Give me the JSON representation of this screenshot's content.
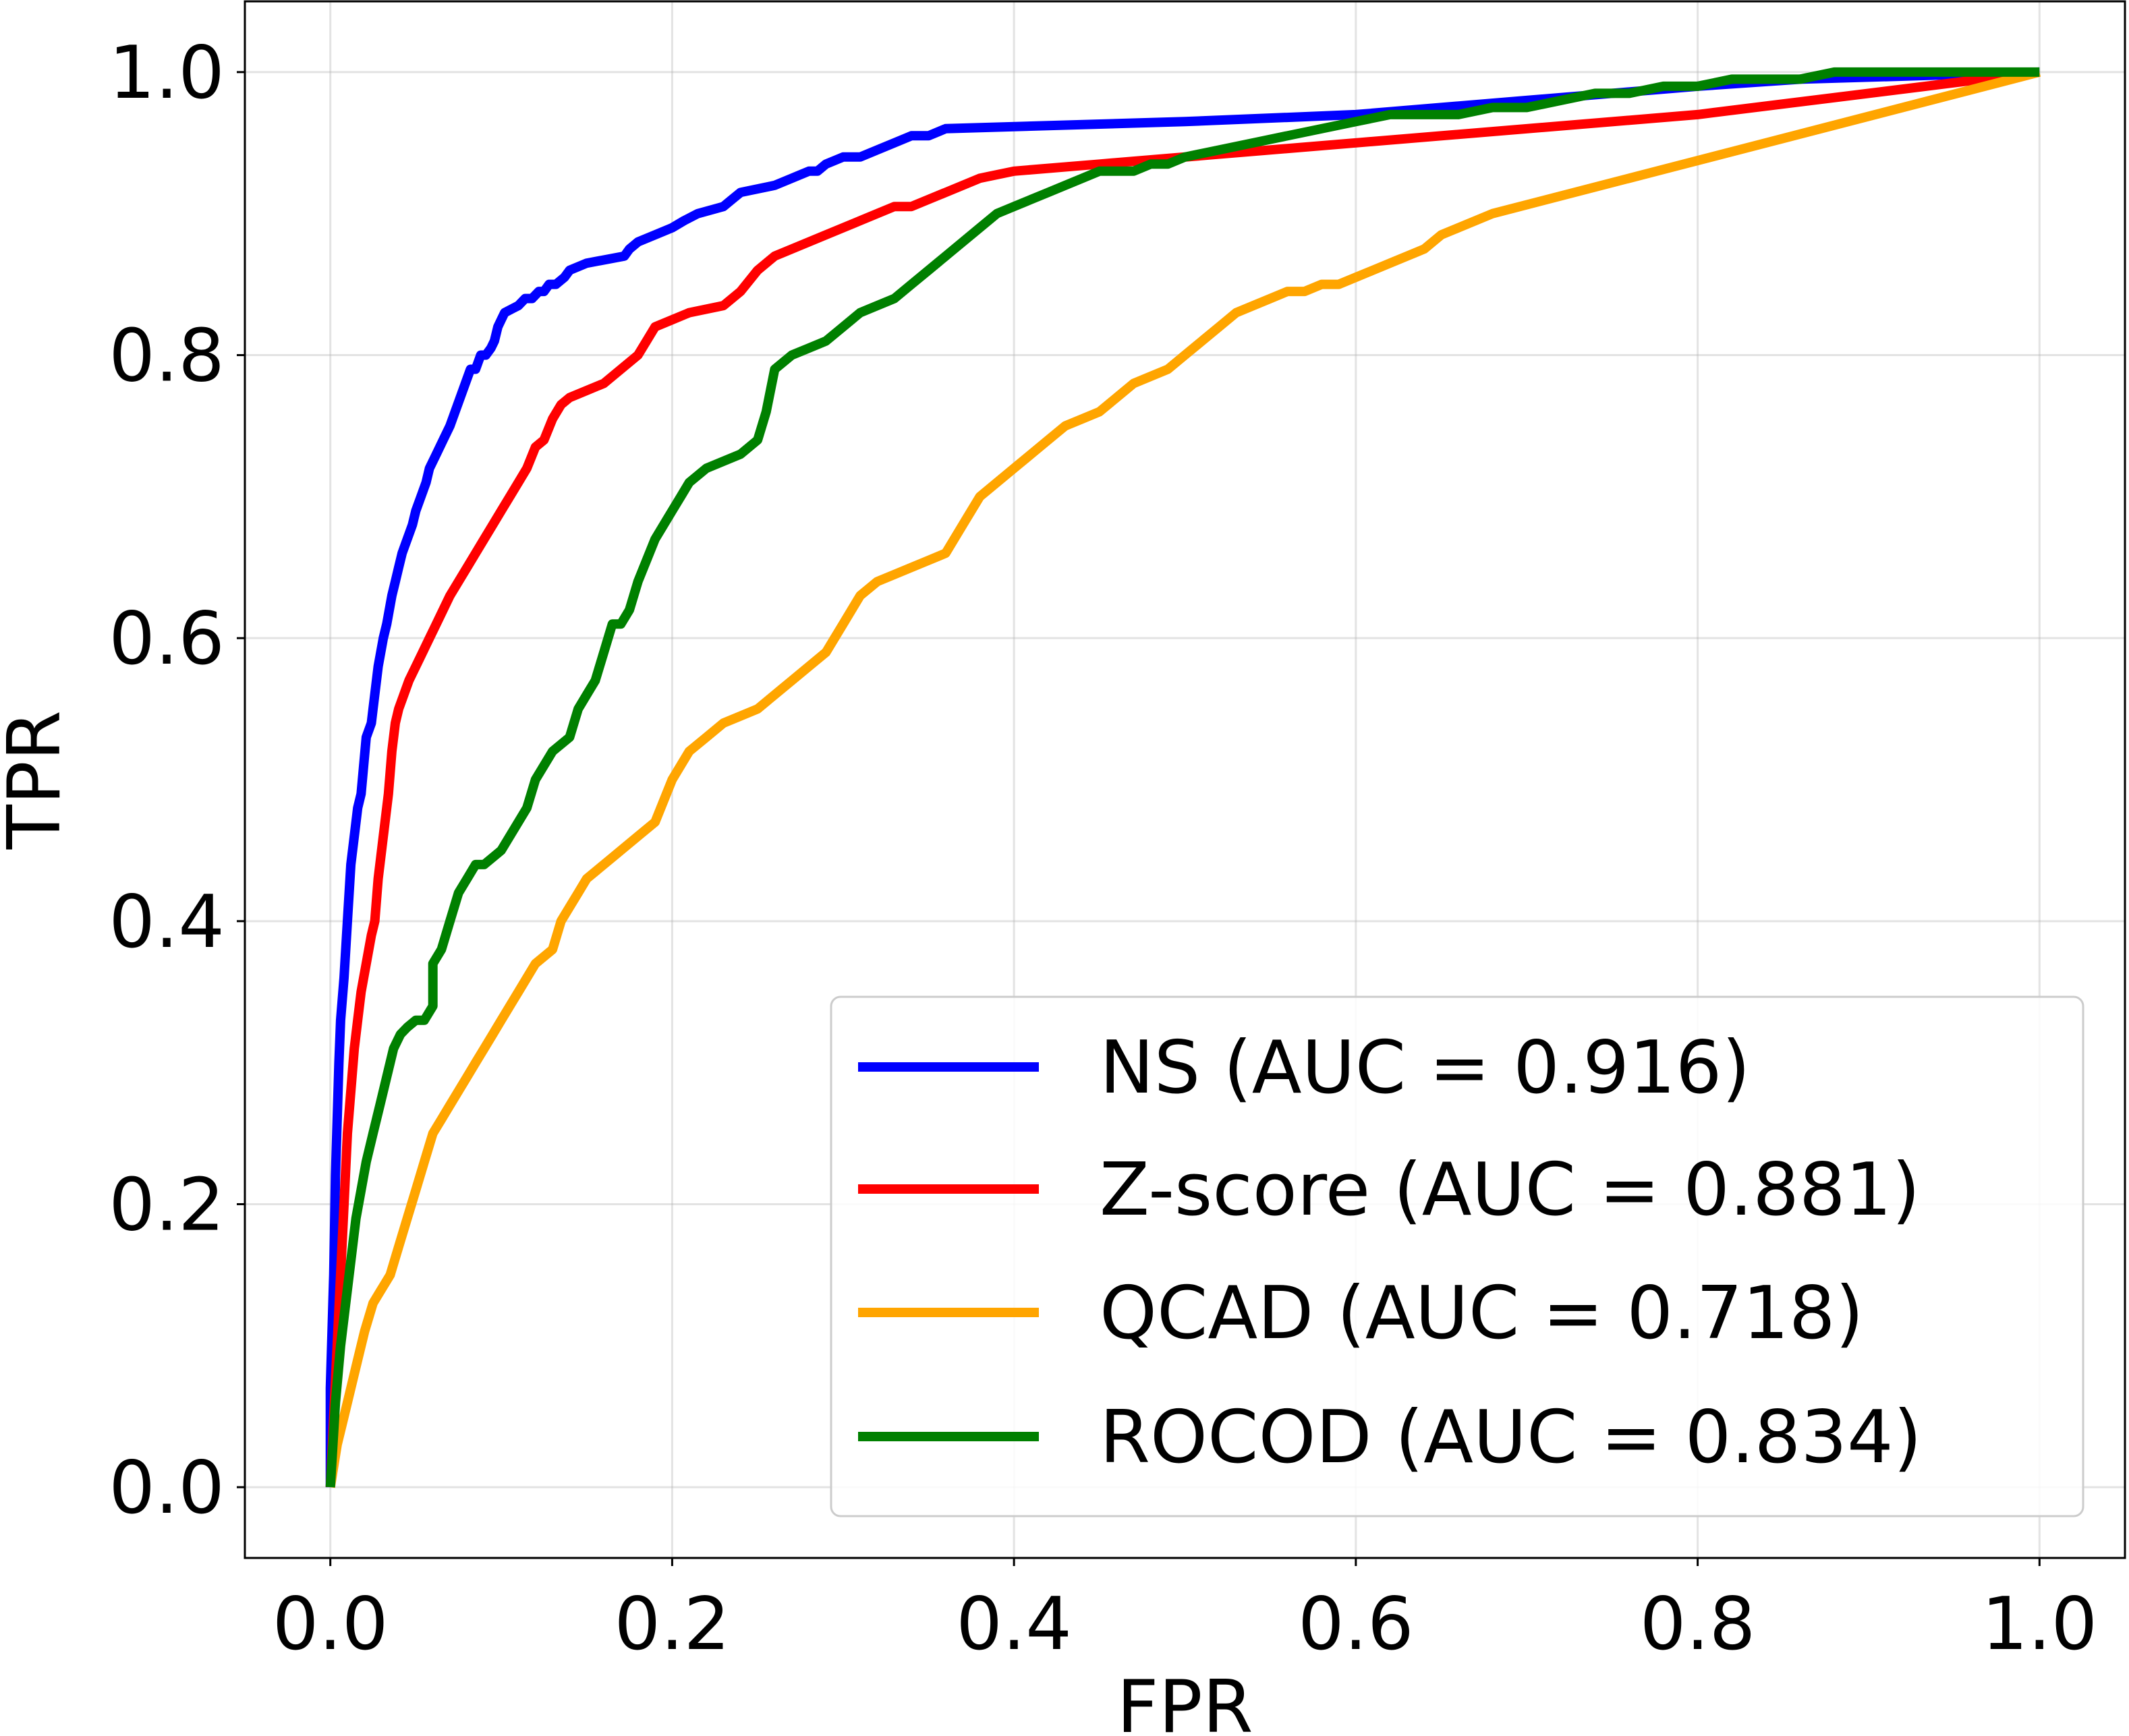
{
  "chart_data": {
    "type": "line",
    "title": "",
    "xlabel": "FPR",
    "ylabel": "TPR",
    "xlim": [
      -0.05,
      1.05
    ],
    "ylim": [
      -0.05,
      1.05
    ],
    "xticks": [
      "0.0",
      "0.2",
      "0.4",
      "0.6",
      "0.8",
      "1.0"
    ],
    "yticks": [
      "0.0",
      "0.2",
      "0.4",
      "0.6",
      "0.8",
      "1.0"
    ],
    "grid": true,
    "legend_position": "lower-right",
    "series": [
      {
        "name": "NS",
        "label": "NS (AUC = 0.916)",
        "auc": 0.916,
        "color": "#0000ff",
        "x": [
          0.0,
          0.0,
          0.002,
          0.003,
          0.005,
          0.006,
          0.008,
          0.01,
          0.012,
          0.014,
          0.016,
          0.018,
          0.021,
          0.024,
          0.025,
          0.028,
          0.031,
          0.033,
          0.036,
          0.038,
          0.04,
          0.042,
          0.045,
          0.048,
          0.05,
          0.053,
          0.056,
          0.058,
          0.06,
          0.062,
          0.066,
          0.07,
          0.073,
          0.076,
          0.079,
          0.082,
          0.085,
          0.088,
          0.091,
          0.094,
          0.096,
          0.098,
          0.1,
          0.102,
          0.11,
          0.114,
          0.118,
          0.122,
          0.125,
          0.128,
          0.132,
          0.137,
          0.14,
          0.15,
          0.172,
          0.175,
          0.18,
          0.19,
          0.2,
          0.207,
          0.215,
          0.23,
          0.235,
          0.24,
          0.26,
          0.27,
          0.28,
          0.285,
          0.29,
          0.3,
          0.31,
          0.32,
          0.33,
          0.34,
          0.35,
          0.36,
          0.5,
          0.6,
          0.7,
          0.8,
          0.86,
          1.0
        ],
        "y": [
          0.0,
          0.07,
          0.15,
          0.22,
          0.3,
          0.33,
          0.36,
          0.4,
          0.44,
          0.46,
          0.48,
          0.49,
          0.53,
          0.54,
          0.55,
          0.58,
          0.6,
          0.61,
          0.63,
          0.64,
          0.65,
          0.66,
          0.67,
          0.68,
          0.69,
          0.7,
          0.71,
          0.72,
          0.725,
          0.73,
          0.74,
          0.75,
          0.76,
          0.77,
          0.78,
          0.79,
          0.79,
          0.8,
          0.8,
          0.805,
          0.81,
          0.82,
          0.825,
          0.83,
          0.835,
          0.84,
          0.84,
          0.845,
          0.845,
          0.85,
          0.85,
          0.855,
          0.86,
          0.865,
          0.87,
          0.875,
          0.88,
          0.885,
          0.89,
          0.895,
          0.9,
          0.905,
          0.91,
          0.915,
          0.92,
          0.925,
          0.93,
          0.93,
          0.935,
          0.94,
          0.94,
          0.945,
          0.95,
          0.955,
          0.955,
          0.96,
          0.965,
          0.97,
          0.98,
          0.99,
          0.995,
          1.0
        ]
      },
      {
        "name": "Z-score",
        "label": "Z-score (AUC = 0.881)",
        "auc": 0.881,
        "color": "#ff0000",
        "x": [
          0.0,
          0.002,
          0.004,
          0.006,
          0.008,
          0.01,
          0.012,
          0.014,
          0.016,
          0.018,
          0.021,
          0.024,
          0.026,
          0.028,
          0.031,
          0.034,
          0.036,
          0.038,
          0.04,
          0.043,
          0.046,
          0.05,
          0.054,
          0.058,
          0.062,
          0.066,
          0.07,
          0.075,
          0.08,
          0.085,
          0.09,
          0.095,
          0.1,
          0.105,
          0.11,
          0.115,
          0.12,
          0.125,
          0.13,
          0.135,
          0.14,
          0.15,
          0.16,
          0.17,
          0.18,
          0.185,
          0.19,
          0.2,
          0.21,
          0.23,
          0.24,
          0.25,
          0.26,
          0.27,
          0.28,
          0.29,
          0.3,
          0.31,
          0.32,
          0.33,
          0.34,
          0.35,
          0.36,
          0.38,
          0.4,
          0.45,
          0.6,
          0.8,
          1.0
        ],
        "y": [
          0.0,
          0.05,
          0.1,
          0.15,
          0.2,
          0.25,
          0.28,
          0.31,
          0.33,
          0.35,
          0.37,
          0.39,
          0.4,
          0.43,
          0.46,
          0.49,
          0.52,
          0.54,
          0.55,
          0.56,
          0.57,
          0.58,
          0.59,
          0.6,
          0.61,
          0.62,
          0.63,
          0.64,
          0.65,
          0.66,
          0.67,
          0.68,
          0.69,
          0.7,
          0.71,
          0.72,
          0.735,
          0.74,
          0.755,
          0.765,
          0.77,
          0.775,
          0.78,
          0.79,
          0.8,
          0.81,
          0.82,
          0.825,
          0.83,
          0.835,
          0.845,
          0.86,
          0.87,
          0.875,
          0.88,
          0.885,
          0.89,
          0.895,
          0.9,
          0.905,
          0.905,
          0.91,
          0.915,
          0.925,
          0.93,
          0.935,
          0.95,
          0.97,
          1.0
        ]
      },
      {
        "name": "QCAD",
        "label": "QCAD (AUC = 0.718)",
        "auc": 0.718,
        "color": "#ffa500",
        "x": [
          0.0,
          0.004,
          0.008,
          0.012,
          0.016,
          0.02,
          0.025,
          0.03,
          0.035,
          0.04,
          0.045,
          0.05,
          0.055,
          0.06,
          0.065,
          0.07,
          0.075,
          0.08,
          0.085,
          0.09,
          0.095,
          0.1,
          0.11,
          0.12,
          0.13,
          0.135,
          0.14,
          0.145,
          0.15,
          0.16,
          0.17,
          0.18,
          0.19,
          0.2,
          0.21,
          0.22,
          0.23,
          0.24,
          0.25,
          0.26,
          0.27,
          0.28,
          0.29,
          0.3,
          0.31,
          0.32,
          0.33,
          0.34,
          0.35,
          0.36,
          0.37,
          0.38,
          0.39,
          0.4,
          0.41,
          0.42,
          0.43,
          0.44,
          0.45,
          0.46,
          0.47,
          0.48,
          0.49,
          0.5,
          0.51,
          0.52,
          0.53,
          0.54,
          0.55,
          0.56,
          0.57,
          0.58,
          0.59,
          0.6,
          0.61,
          0.62,
          0.63,
          0.64,
          0.65,
          0.66,
          0.68,
          1.0
        ],
        "y": [
          0.0,
          0.03,
          0.05,
          0.07,
          0.09,
          0.11,
          0.13,
          0.14,
          0.15,
          0.17,
          0.19,
          0.21,
          0.23,
          0.25,
          0.26,
          0.27,
          0.28,
          0.29,
          0.3,
          0.31,
          0.32,
          0.33,
          0.35,
          0.37,
          0.38,
          0.4,
          0.41,
          0.42,
          0.43,
          0.44,
          0.45,
          0.46,
          0.47,
          0.5,
          0.52,
          0.53,
          0.54,
          0.545,
          0.55,
          0.56,
          0.57,
          0.58,
          0.59,
          0.61,
          0.63,
          0.64,
          0.645,
          0.65,
          0.655,
          0.66,
          0.68,
          0.7,
          0.71,
          0.72,
          0.73,
          0.74,
          0.75,
          0.755,
          0.76,
          0.77,
          0.78,
          0.785,
          0.79,
          0.8,
          0.81,
          0.82,
          0.83,
          0.835,
          0.84,
          0.845,
          0.845,
          0.85,
          0.85,
          0.855,
          0.86,
          0.865,
          0.87,
          0.875,
          0.885,
          0.89,
          0.9,
          1.0
        ]
      },
      {
        "name": "ROCOD",
        "label": "ROCOD (AUC = 0.834)",
        "auc": 0.834,
        "color": "#008000",
        "x": [
          0.0,
          0.003,
          0.006,
          0.009,
          0.012,
          0.015,
          0.018,
          0.021,
          0.025,
          0.029,
          0.033,
          0.037,
          0.041,
          0.045,
          0.05,
          0.055,
          0.06,
          0.06,
          0.065,
          0.07,
          0.075,
          0.08,
          0.085,
          0.09,
          0.1,
          0.105,
          0.11,
          0.115,
          0.12,
          0.13,
          0.14,
          0.145,
          0.15,
          0.155,
          0.16,
          0.165,
          0.17,
          0.175,
          0.18,
          0.19,
          0.2,
          0.205,
          0.21,
          0.215,
          0.22,
          0.23,
          0.24,
          0.25,
          0.255,
          0.26,
          0.27,
          0.28,
          0.29,
          0.3,
          0.31,
          0.32,
          0.33,
          0.34,
          0.35,
          0.36,
          0.37,
          0.38,
          0.39,
          0.4,
          0.41,
          0.42,
          0.43,
          0.44,
          0.45,
          0.46,
          0.47,
          0.48,
          0.49,
          0.5,
          0.52,
          0.54,
          0.56,
          0.58,
          0.6,
          0.62,
          0.64,
          0.66,
          0.68,
          0.7,
          0.72,
          0.74,
          0.76,
          0.78,
          0.8,
          0.82,
          0.84,
          0.86,
          0.88,
          0.9,
          1.0
        ],
        "y": [
          0.0,
          0.06,
          0.1,
          0.13,
          0.16,
          0.19,
          0.21,
          0.23,
          0.25,
          0.27,
          0.29,
          0.31,
          0.32,
          0.325,
          0.33,
          0.33,
          0.34,
          0.37,
          0.38,
          0.4,
          0.42,
          0.43,
          0.44,
          0.44,
          0.45,
          0.46,
          0.47,
          0.48,
          0.5,
          0.52,
          0.53,
          0.55,
          0.56,
          0.57,
          0.59,
          0.61,
          0.61,
          0.62,
          0.64,
          0.67,
          0.69,
          0.7,
          0.71,
          0.715,
          0.72,
          0.725,
          0.73,
          0.74,
          0.76,
          0.79,
          0.8,
          0.805,
          0.81,
          0.82,
          0.83,
          0.835,
          0.84,
          0.85,
          0.86,
          0.87,
          0.88,
          0.89,
          0.9,
          0.905,
          0.91,
          0.915,
          0.92,
          0.925,
          0.93,
          0.93,
          0.93,
          0.935,
          0.935,
          0.94,
          0.945,
          0.95,
          0.955,
          0.96,
          0.965,
          0.97,
          0.97,
          0.97,
          0.975,
          0.975,
          0.98,
          0.985,
          0.985,
          0.99,
          0.99,
          0.995,
          0.995,
          0.995,
          1.0,
          1.0,
          1.0
        ]
      }
    ]
  }
}
